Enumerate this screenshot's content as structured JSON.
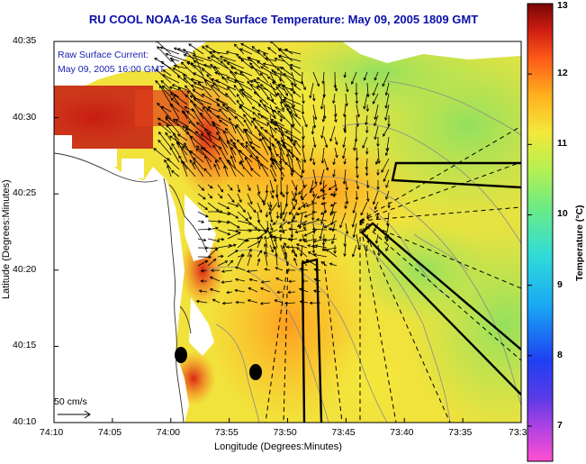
{
  "title": "RU COOL  NOAA-16  Sea Surface Temperature:  May 09, 2005 1809 GMT",
  "overlay": {
    "line1": "Raw Surface Current:",
    "line2": "May 09, 2005 16:00 GMT"
  },
  "scale_bar": {
    "label": "50 cm/s"
  },
  "axes": {
    "x_label": "Longitude (Degrees:Minutes)",
    "y_label": "Latitude (Degrees:Minutes)",
    "x_ticks": [
      "74:10",
      "74:05",
      "74:00",
      "73:55",
      "73:50",
      "73:45",
      "73:40",
      "73:35",
      "73:3"
    ],
    "y_ticks": [
      "40:35",
      "40:30",
      "40:25",
      "40:20",
      "40:15",
      "40:10"
    ]
  },
  "colorbar": {
    "label": "Temperature (°C)",
    "ticks": [
      "13",
      "12",
      "11",
      "10",
      "9",
      "8",
      "7"
    ],
    "range": [
      6.5,
      13.0
    ],
    "colors": [
      "#ff4fd0",
      "#9b3fe0",
      "#2a3cf0",
      "#22b8f2",
      "#3fe0c8",
      "#8ef06a",
      "#f2f044",
      "#ffc21e",
      "#ff8a1c",
      "#f2361c",
      "#b01010",
      "#7a0606"
    ]
  },
  "map": {
    "land_color": "#ffffff",
    "coast_color": "#333333",
    "contour_color": "#8a8a8a",
    "track_color": "#000000"
  }
}
